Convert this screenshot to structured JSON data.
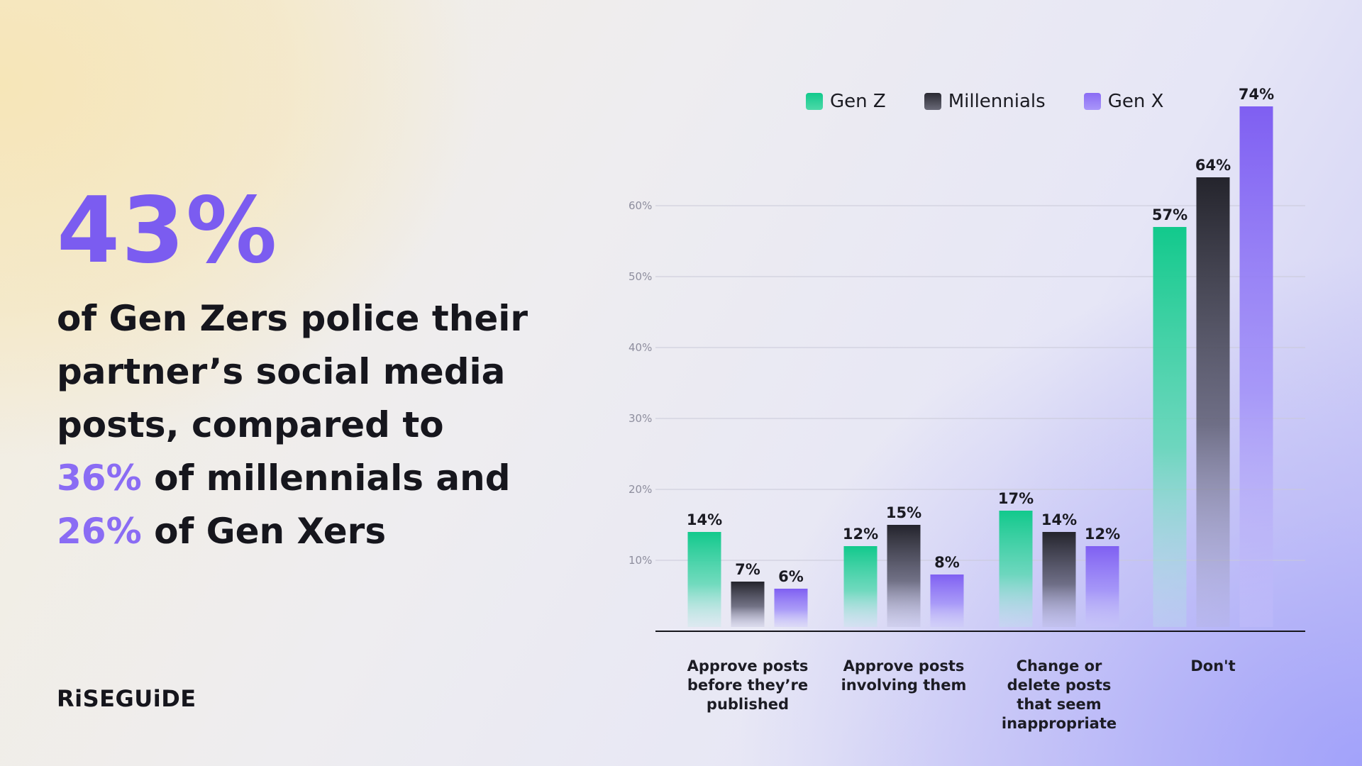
{
  "headline": {
    "stat": "43%",
    "line1": "of Gen Zers police their",
    "line2": "partner’s social media",
    "line3": "posts, compared to",
    "line4_highlight": "36%",
    "line4_rest": " of millennials and",
    "line5_highlight": "26%",
    "line5_rest": " of Gen Xers"
  },
  "brand": {
    "logo_text": "RiSEGUiDE"
  },
  "colors": {
    "accent": "#7b5cf0",
    "gen_z": "#12c98c",
    "millennials": "#2a2a32",
    "gen_x": "#8a6cf4"
  },
  "chart_data": {
    "type": "bar",
    "title": "",
    "xlabel": "",
    "ylabel": "",
    "ylim": [
      0,
      70
    ],
    "y_ticks": [
      10,
      20,
      30,
      40,
      50,
      60
    ],
    "y_tick_labels": [
      "10%",
      "20%",
      "30%",
      "40%",
      "50%",
      "60%"
    ],
    "grid": true,
    "legend_position": "top",
    "categories": [
      "Approve posts before they’re published",
      "Approve posts involving them",
      "Change or delete posts that seem inappropriate",
      "Don't"
    ],
    "category_lines": [
      [
        "Approve posts",
        "before they’re",
        "published"
      ],
      [
        "Approve posts",
        "involving them"
      ],
      [
        "Change or",
        "delete posts",
        "that seem",
        "inappropriate"
      ],
      [
        "Don't"
      ]
    ],
    "series": [
      {
        "name": "Gen Z",
        "values": [
          14,
          12,
          17,
          57
        ],
        "labels": [
          "14%",
          "12%",
          "17%",
          "57%"
        ]
      },
      {
        "name": "Millennials",
        "values": [
          7,
          15,
          14,
          64
        ],
        "labels": [
          "7%",
          "15%",
          "14%",
          "64%"
        ]
      },
      {
        "name": "Gen X",
        "values": [
          6,
          8,
          12,
          74
        ],
        "labels": [
          "6%",
          "8%",
          "12%",
          "74%"
        ]
      }
    ]
  }
}
